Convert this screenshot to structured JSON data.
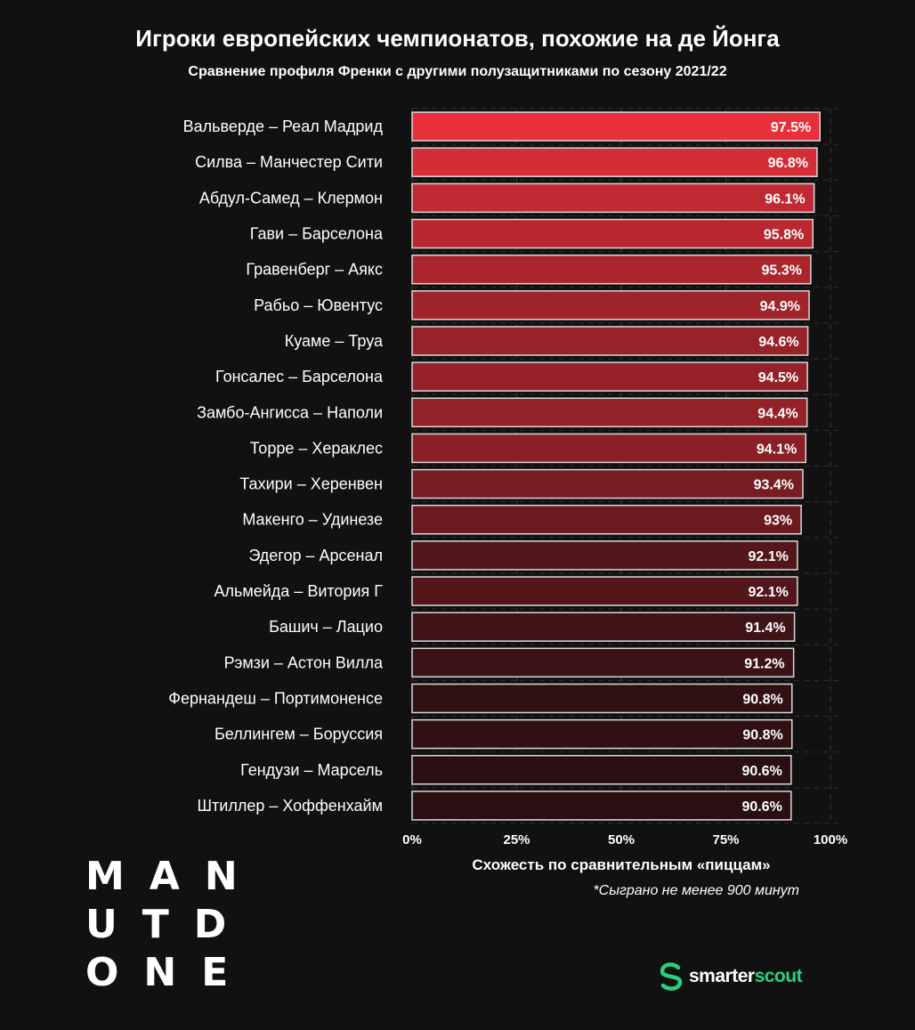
{
  "header": {
    "title": "Игроки европейских чемпионатов, похожие на де Йонга",
    "subtitle": "Сравнение профиля Френки с другими полузащитниками по сезону 2021/22"
  },
  "chart_data": {
    "type": "bar",
    "orientation": "horizontal",
    "title": "Игроки европейских чемпионатов, похожие на де Йонга",
    "subtitle": "Сравнение профиля Френки с другими полузащитниками по сезону 2021/22",
    "xlabel": "Схожесть по сравнительным «пиццам»",
    "ylabel": "",
    "xlim": [
      0,
      100
    ],
    "x_ticks": [
      "0%",
      "25%",
      "50%",
      "75%",
      "100%"
    ],
    "grid": true,
    "categories": [
      "Вальверде – Реал Мадрид",
      "Силва – Манчестер Сити",
      "Абдул-Самед – Клермон",
      "Гави – Барселона",
      "Гравенберг – Аякс",
      "Рабьо – Ювентус",
      "Куаме – Труа",
      "Гонсалес – Барселона",
      "Замбо-Ангисса – Наполи",
      "Торре – Хераклес",
      "Тахири – Херенвен",
      "Макенго – Удинезе",
      "Эдегор – Арсенал",
      "Альмейда – Витория Г",
      "Башич – Лацио",
      "Рэмзи – Астон Вилла",
      "Фернандеш – Портимоненсе",
      "Беллингем – Боруссия",
      "Гендузи – Марсель",
      "Штиллер – Хоффенхайм"
    ],
    "values": [
      97.5,
      96.8,
      96.1,
      95.8,
      95.3,
      94.9,
      94.6,
      94.5,
      94.4,
      94.1,
      93.4,
      93,
      92.1,
      92.1,
      91.4,
      91.2,
      90.8,
      90.8,
      90.6,
      90.6
    ],
    "value_labels": [
      "97.5%",
      "96.8%",
      "96.1%",
      "95.8%",
      "95.3%",
      "94.9%",
      "94.6%",
      "94.5%",
      "94.4%",
      "94.1%",
      "93.4%",
      "93%",
      "92.1%",
      "92.1%",
      "91.4%",
      "91.2%",
      "90.8%",
      "90.8%",
      "90.6%",
      "90.6%"
    ],
    "color_high": "#e8303a",
    "color_low": "#2a0f12",
    "bar_border": "#d9d9d9"
  },
  "footnote": "*Сыграно не менее 900 минут",
  "logo": {
    "lines": [
      "MAN",
      "UTD",
      "ONE"
    ]
  },
  "brand": {
    "part1": "smarter",
    "part2": "scout",
    "icon": "smarterscout-s-icon",
    "color": "#28d07f"
  }
}
